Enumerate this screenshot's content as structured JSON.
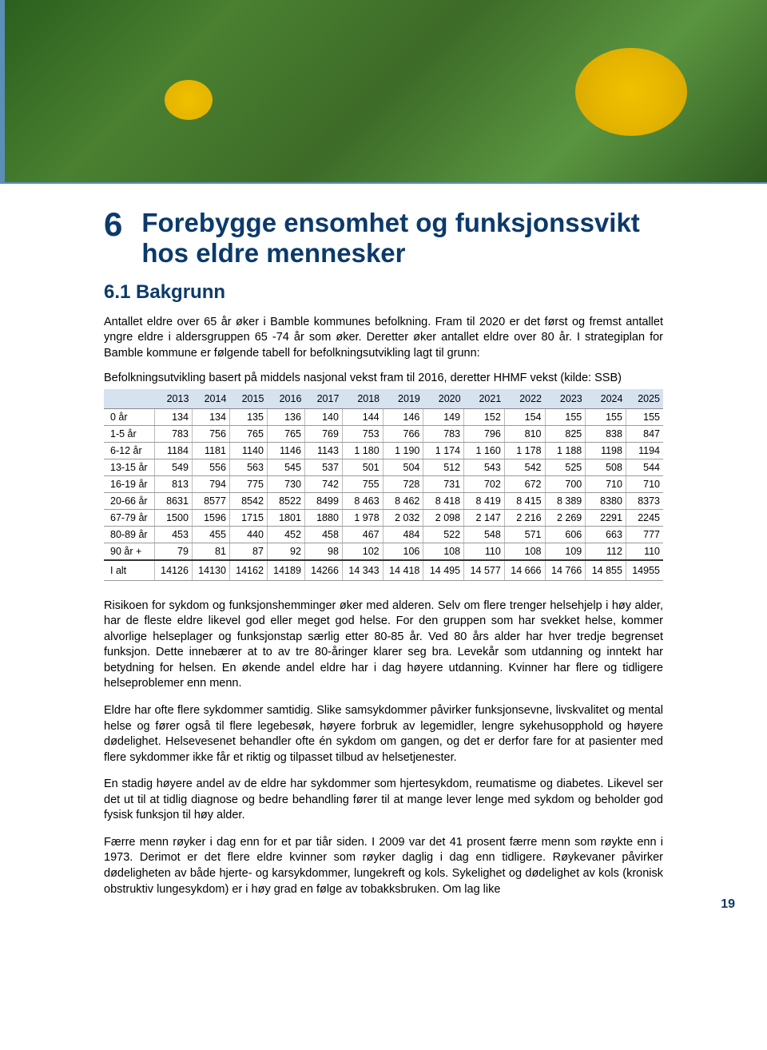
{
  "chapter": {
    "number": "6",
    "title": "Forebygge ensomhet og funksjonssvikt hos eldre mennesker",
    "subsection": "6.1  Bakgrunn"
  },
  "paragraphs": {
    "p1": "Antallet eldre over 65 år øker i Bamble kommunes befolkning. Fram til 2020 er det først og fremst antallet yngre eldre i aldersgruppen 65 -74 år som øker. Deretter øker antallet eldre over 80 år. I strategiplan for Bamble kommune er følgende tabell for befolkningsutvikling lagt til grunn:",
    "caption": "Befolkningsutvikling basert på middels nasjonal vekst fram til 2016, deretter HHMF vekst (kilde: SSB)",
    "p2": "Risikoen for sykdom og funksjonshemminger øker med alderen. Selv om flere trenger helsehjelp i høy alder, har de fleste eldre likevel god eller meget god helse. For den gruppen som har svekket helse, kommer alvorlige helseplager og funksjonstap særlig etter 80-85 år. Ved 80 års alder har hver tredje begrenset funksjon. Dette innebærer at to av tre 80-åringer klarer seg bra. Levekår som utdanning og inntekt har betydning for helsen. En økende andel eldre har i dag høyere utdanning. Kvinner har flere og tidligere helseproblemer enn menn.",
    "p3": "Eldre har ofte flere sykdommer samtidig. Slike samsykdommer påvirker funksjonsevne, livskvalitet og mental helse og fører også til flere legebesøk, høyere forbruk av legemidler, lengre sykehusopphold og høyere dødelighet. Helsevesenet behandler ofte én sykdom om gangen, og det er derfor fare for at pasienter med flere sykdommer ikke får et riktig og tilpasset tilbud av helsetjenester.",
    "p4": "En stadig høyere andel av de eldre har sykdommer som hjertesykdom, reumatisme og diabetes. Likevel ser det ut til at tidlig diagnose og bedre behandling fører til at mange lever lenge med sykdom og beholder god fysisk funksjon til høy alder.",
    "p5": "Færre menn røyker i dag enn for et par tiår siden. I 2009 var det 41 prosent færre menn som røykte enn i 1973. Derimot er det flere eldre kvinner som røyker daglig i dag enn tidligere. Røykevaner påvirker dødeligheten av både hjerte- og karsykdommer, lungekreft og kols. Sykelighet og dødelighet av kols (kronisk obstruktiv lungesykdom) er i høy grad en følge av tobakksbruken. Om lag like"
  },
  "table": {
    "years": [
      "2013",
      "2014",
      "2015",
      "2016",
      "2017",
      "2018",
      "2019",
      "2020",
      "2021",
      "2022",
      "2023",
      "2024",
      "2025"
    ],
    "rows": [
      {
        "label": "0 år",
        "v": [
          "134",
          "134",
          "135",
          "136",
          "140",
          "144",
          "146",
          "149",
          "152",
          "154",
          "155",
          "155",
          "155"
        ]
      },
      {
        "label": "1-5 år",
        "v": [
          "783",
          "756",
          "765",
          "765",
          "769",
          "753",
          "766",
          "783",
          "796",
          "810",
          "825",
          "838",
          "847"
        ]
      },
      {
        "label": "6-12 år",
        "v": [
          "1184",
          "1181",
          "1140",
          "1146",
          "1143",
          "1 180",
          "1 190",
          "1 174",
          "1 160",
          "1 178",
          "1 188",
          "1198",
          "1194"
        ]
      },
      {
        "label": "13-15 år",
        "v": [
          "549",
          "556",
          "563",
          "545",
          "537",
          "501",
          "504",
          "512",
          "543",
          "542",
          "525",
          "508",
          "544"
        ]
      },
      {
        "label": "16-19 år",
        "v": [
          "813",
          "794",
          "775",
          "730",
          "742",
          "755",
          "728",
          "731",
          "702",
          "672",
          "700",
          "710",
          "710"
        ]
      },
      {
        "label": "20-66 år",
        "v": [
          "8631",
          "8577",
          "8542",
          "8522",
          "8499",
          "8 463",
          "8 462",
          "8 418",
          "8 419",
          "8 415",
          "8 389",
          "8380",
          "8373"
        ]
      },
      {
        "label": "67-79 år",
        "v": [
          "1500",
          "1596",
          "1715",
          "1801",
          "1880",
          "1 978",
          "2 032",
          "2 098",
          "2 147",
          "2 216",
          "2 269",
          "2291",
          "2245"
        ]
      },
      {
        "label": "80-89 år",
        "v": [
          "453",
          "455",
          "440",
          "452",
          "458",
          "467",
          "484",
          "522",
          "548",
          "571",
          "606",
          "663",
          "777"
        ]
      },
      {
        "label": "90 år +",
        "v": [
          "79",
          "81",
          "87",
          "92",
          "98",
          "102",
          "106",
          "108",
          "110",
          "108",
          "109",
          "112",
          "110"
        ]
      }
    ],
    "total": {
      "label": "I alt",
      "v": [
        "14126",
        "14130",
        "14162",
        "14189",
        "14266",
        "14 343",
        "14 418",
        "14 495",
        "14 577",
        "14 666",
        "14 766",
        "14 855",
        "14955"
      ]
    }
  },
  "pageNumber": "19",
  "styling": {
    "heading_color": "#0b3a6b",
    "table_header_bg": "#d6e2f0",
    "body_font": "Verdana",
    "body_fontsize_pt": 11,
    "heading_fontsize_pt": 26,
    "hero_border_color": "#5b8fb8"
  }
}
